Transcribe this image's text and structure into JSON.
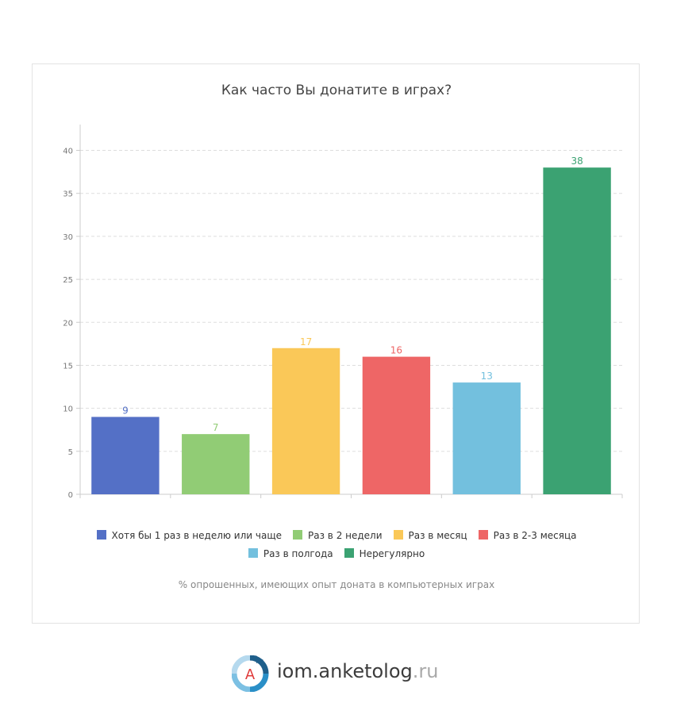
{
  "chart_data": {
    "type": "bar",
    "title": "Как часто Вы донатите в играх?",
    "ylim": [
      0,
      43
    ],
    "yticks": [
      0,
      5,
      10,
      15,
      20,
      25,
      30,
      35,
      40
    ],
    "grid": true,
    "categories": [
      "Хотя бы 1 раз в неделю или чаще",
      "Раз в 2 недели",
      "Раз в месяц",
      "Раз в 2-3 месяца",
      "Раз в полгода",
      "Нерегулярно"
    ],
    "values": [
      9,
      7,
      17,
      16,
      13,
      38
    ],
    "colors": [
      "#5470c6",
      "#91cc75",
      "#fac858",
      "#ee6666",
      "#73c0de",
      "#3ba272"
    ],
    "legend_position": "bottom",
    "note": "% опрошенных, имеющих опыт доната в компьютерных играх"
  },
  "logo": {
    "letter": "A",
    "name": "iom.anketolog",
    "suffix": ".ru"
  }
}
